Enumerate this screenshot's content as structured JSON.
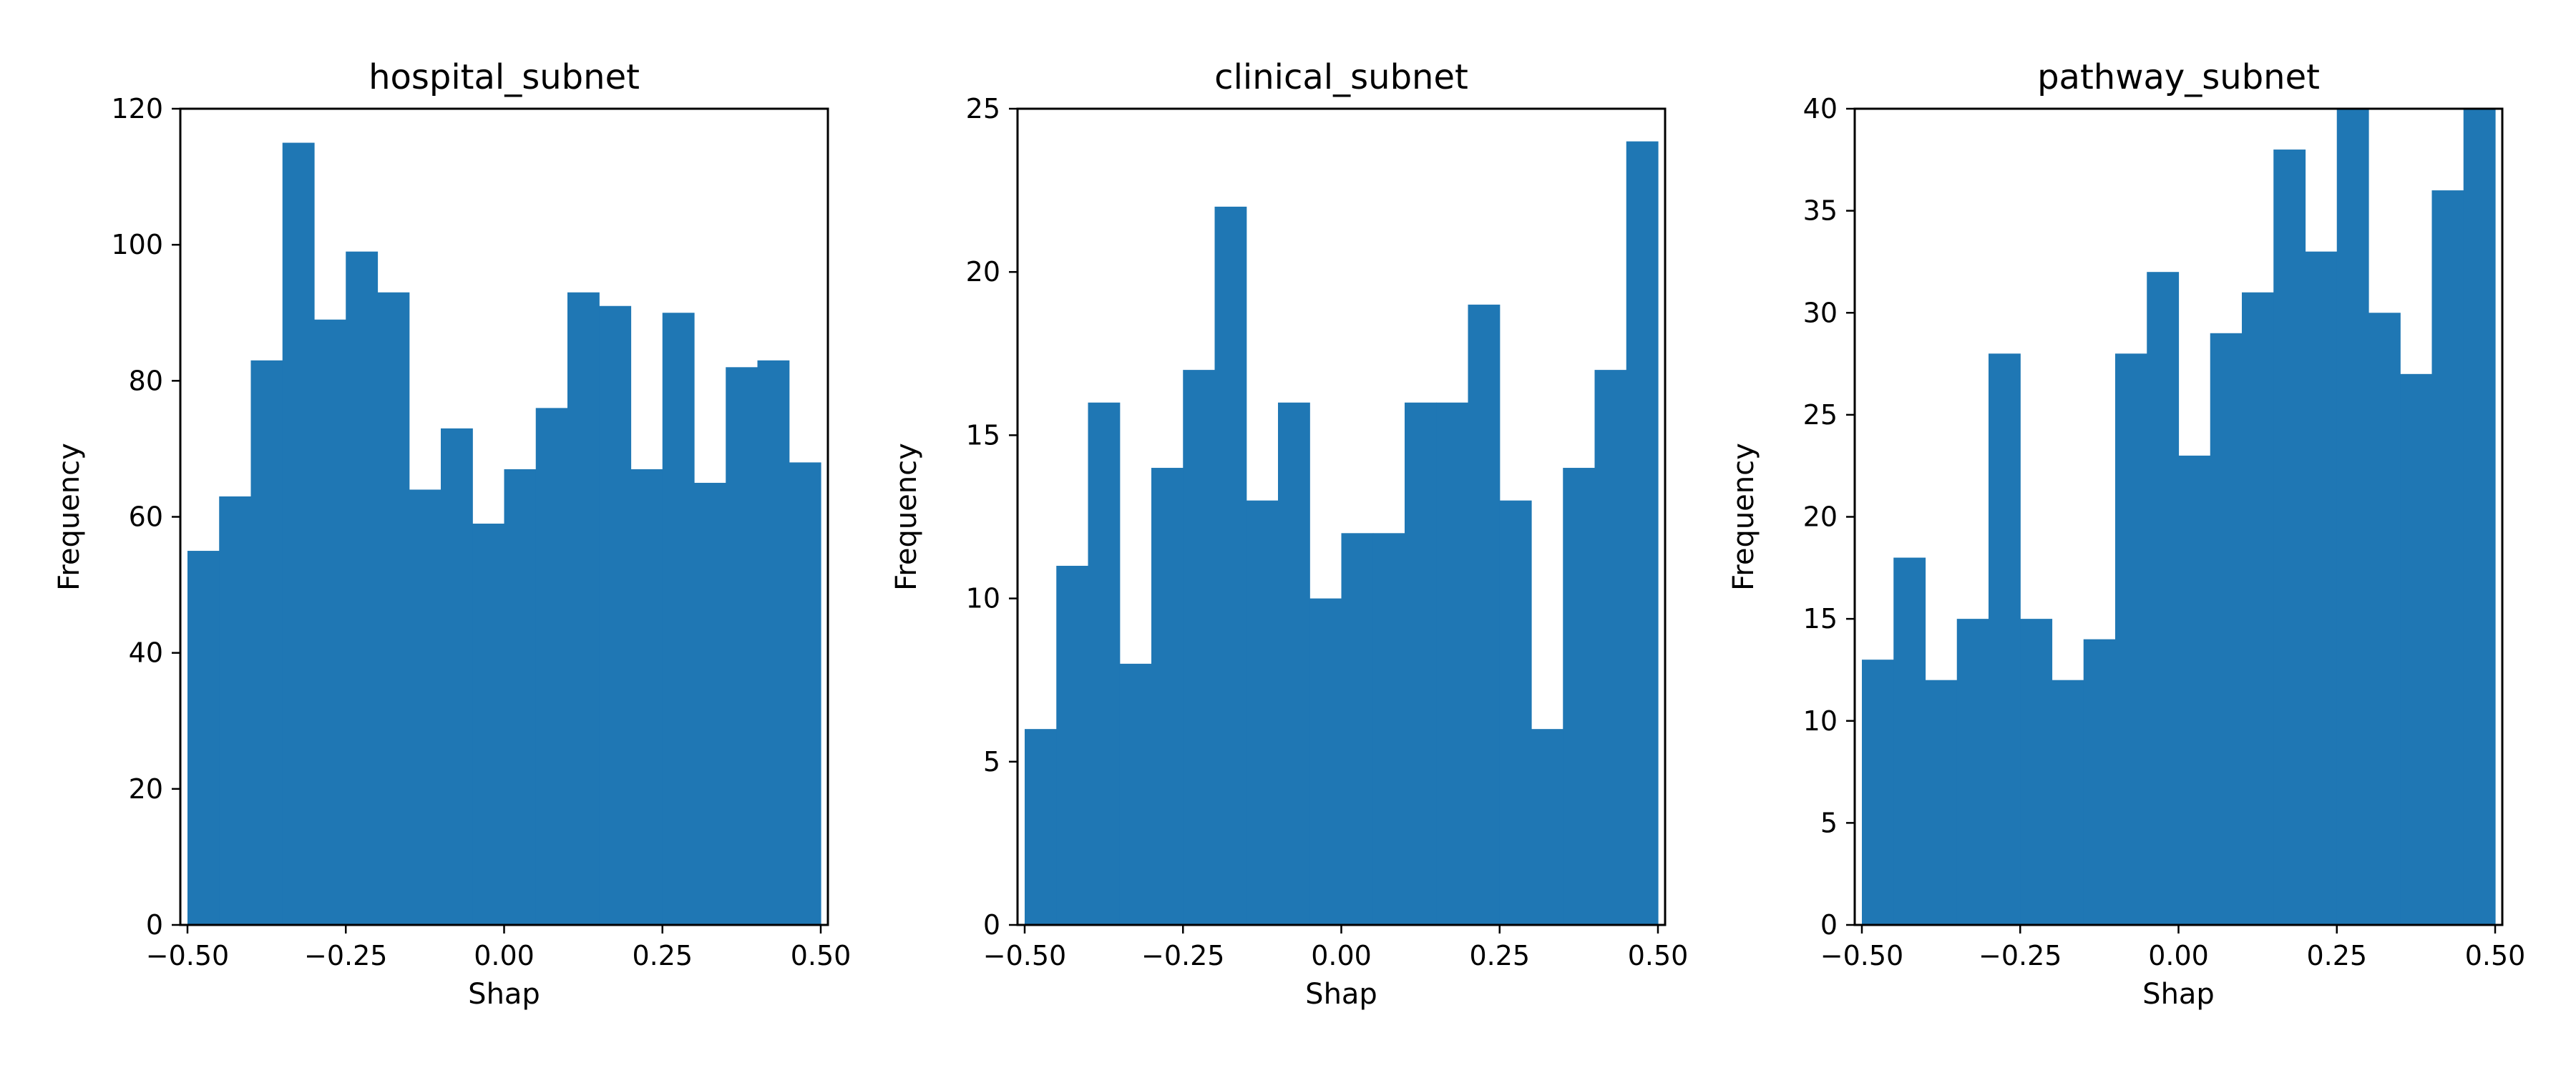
{
  "chart_data": [
    {
      "type": "bar",
      "subtype": "histogram",
      "title": "hospital_subnet",
      "xlabel": "Shap",
      "ylabel": "Frequency",
      "xlim": [
        -0.5,
        0.5
      ],
      "ylim": [
        0,
        120
      ],
      "xticks": [
        -0.5,
        -0.25,
        0.0,
        0.25,
        0.5
      ],
      "xtick_labels": [
        "−0.50",
        "−0.25",
        "0.00",
        "0.25",
        "0.50"
      ],
      "yticks": [
        0,
        20,
        40,
        60,
        80,
        100,
        120
      ],
      "ytick_labels": [
        "0",
        "20",
        "40",
        "60",
        "80",
        "100",
        "120"
      ],
      "bin_edges": [
        -0.5,
        -0.45,
        -0.4,
        -0.35,
        -0.3,
        -0.25,
        -0.2,
        -0.15,
        -0.1,
        -0.05,
        0.0,
        0.05,
        0.1,
        0.15,
        0.2,
        0.25,
        0.3,
        0.35,
        0.4,
        0.45,
        0.5
      ],
      "values": [
        55,
        63,
        83,
        115,
        89,
        99,
        93,
        64,
        73,
        59,
        67,
        76,
        93,
        91,
        67,
        90,
        65,
        82,
        83,
        68
      ],
      "color": "#1f77b4",
      "grid": false,
      "legend": "none"
    },
    {
      "type": "bar",
      "subtype": "histogram",
      "title": "clinical_subnet",
      "xlabel": "Shap",
      "ylabel": "Frequency",
      "xlim": [
        -0.5,
        0.5
      ],
      "ylim": [
        0,
        25
      ],
      "xticks": [
        -0.5,
        -0.25,
        0.0,
        0.25,
        0.5
      ],
      "xtick_labels": [
        "−0.50",
        "−0.25",
        "0.00",
        "0.25",
        "0.50"
      ],
      "yticks": [
        0,
        5,
        10,
        15,
        20,
        25
      ],
      "ytick_labels": [
        "0",
        "5",
        "10",
        "15",
        "20",
        "25"
      ],
      "bin_edges": [
        -0.5,
        -0.45,
        -0.4,
        -0.35,
        -0.3,
        -0.25,
        -0.2,
        -0.15,
        -0.1,
        -0.05,
        0.0,
        0.05,
        0.1,
        0.15,
        0.2,
        0.25,
        0.3,
        0.35,
        0.4,
        0.45,
        0.5
      ],
      "values": [
        6,
        11,
        16,
        8,
        14,
        17,
        22,
        13,
        16,
        10,
        12,
        12,
        16,
        16,
        19,
        13,
        6,
        14,
        17,
        24
      ],
      "color": "#1f77b4",
      "grid": false,
      "legend": "none"
    },
    {
      "type": "bar",
      "subtype": "histogram",
      "title": "pathway_subnet",
      "xlabel": "Shap",
      "ylabel": "Frequency",
      "xlim": [
        -0.5,
        0.5
      ],
      "ylim": [
        0,
        40
      ],
      "xticks": [
        -0.5,
        -0.25,
        0.0,
        0.25,
        0.5
      ],
      "xtick_labels": [
        "−0.50",
        "−0.25",
        "0.00",
        "0.25",
        "0.50"
      ],
      "yticks": [
        0,
        5,
        10,
        15,
        20,
        25,
        30,
        35,
        40
      ],
      "ytick_labels": [
        "0",
        "5",
        "10",
        "15",
        "20",
        "25",
        "30",
        "35",
        "40"
      ],
      "bin_edges": [
        -0.5,
        -0.45,
        -0.4,
        -0.35,
        -0.3,
        -0.25,
        -0.2,
        -0.15,
        -0.1,
        -0.05,
        0.0,
        0.05,
        0.1,
        0.15,
        0.2,
        0.25,
        0.3,
        0.35,
        0.4,
        0.45,
        0.5
      ],
      "values": [
        13,
        18,
        12,
        15,
        28,
        15,
        12,
        14,
        28,
        32,
        23,
        29,
        31,
        38,
        33,
        40,
        30,
        27,
        36,
        40
      ],
      "color": "#1f77b4",
      "grid": false,
      "legend": "none"
    }
  ]
}
